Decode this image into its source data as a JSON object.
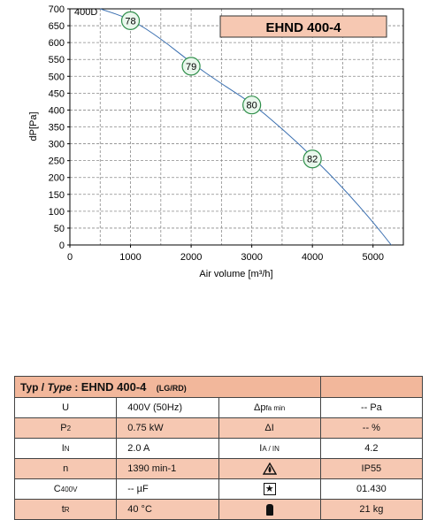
{
  "chart_data": {
    "type": "line",
    "title": "",
    "xlabel": "Air volume [m³/h]",
    "ylabel": "dP[Pa]",
    "xlim": [
      0,
      5500
    ],
    "ylim": [
      0,
      700
    ],
    "x_ticks": [
      0,
      1000,
      2000,
      3000,
      4000,
      5000
    ],
    "y_ticks": [
      0,
      50,
      100,
      150,
      200,
      250,
      300,
      350,
      400,
      450,
      500,
      550,
      600,
      650,
      700
    ],
    "grid": true,
    "series": [
      {
        "name": "400D",
        "color": "#3a6fb0",
        "x": [
          500,
          1000,
          1500,
          2000,
          2500,
          3000,
          3500,
          4000,
          4500,
          5000,
          5300
        ],
        "y": [
          700,
          670,
          612,
          540,
          478,
          420,
          345,
          262,
          170,
          68,
          0
        ]
      }
    ],
    "markers": [
      {
        "x": 1000,
        "y": 665,
        "label": "78"
      },
      {
        "x": 2000,
        "y": 530,
        "label": "79"
      },
      {
        "x": 3000,
        "y": 415,
        "label": "80"
      },
      {
        "x": 4000,
        "y": 255,
        "label": "82"
      }
    ],
    "annotations": [
      "400D",
      "EHND 400-4"
    ]
  },
  "chart_colors": {
    "label_box_bg": "#f6c8b2",
    "marker_fill": "#e9f7ec",
    "marker_stroke": "#2f8f4a",
    "grid": "#8a8a8a",
    "axis": "#000000",
    "curve": "#3a6fb0"
  },
  "spec_table": {
    "header": {
      "typ": "Typ /",
      "type_label": "Type",
      "colon": ":",
      "model": "EHND 400-4",
      "variant": "(LG/RD)"
    },
    "rows": [
      {
        "p1": "U",
        "p1sub": "",
        "v1": "400V (50Hz)",
        "p2": "Δp",
        "p2sub": "fa min",
        "v2": "-- Pa"
      },
      {
        "p1": "P",
        "p1sub": "2",
        "v1": "0.75 kW",
        "p2": "ΔI",
        "p2sub": "",
        "v2": "-- %"
      },
      {
        "p1": "I",
        "p1sub": "N",
        "v1": "2.0 A",
        "p2": "I",
        "p2sub": "A / I",
        "p2sub2": "N",
        "v2": "4.2"
      },
      {
        "p1": "n",
        "p1sub": "",
        "v1": "1390 min-1",
        "p2icon": "warning-icon",
        "v2": "IP55"
      },
      {
        "p1": "C",
        "p1sub": "400V",
        "v1": "-- µF",
        "p2icon": "star-box-icon",
        "v2": "01.430"
      },
      {
        "p1": "t",
        "p1sub": "R",
        "v1": "40 °C",
        "p2icon": "weight-icon",
        "v2": "21 kg"
      }
    ]
  }
}
